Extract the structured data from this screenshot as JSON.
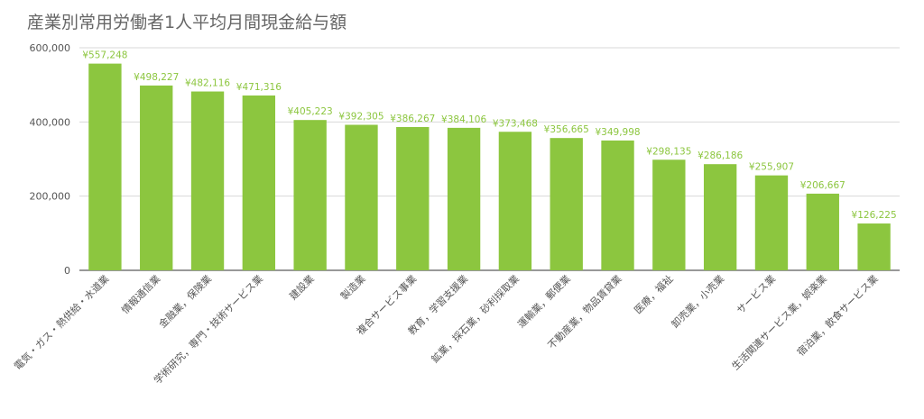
{
  "chart_data": {
    "type": "bar",
    "title": "産業別常用労働者1人平均月間現金給与額",
    "xlabel": "",
    "ylabel": "",
    "ylim": [
      0,
      600000
    ],
    "yticks": [
      "0",
      "200,000",
      "400,000",
      "600,000"
    ],
    "grid": true,
    "legend": "none",
    "bar_color": "#8cc63f",
    "label_color": "#8cc63f",
    "categories": [
      "電気・ガス・熱供給・水道業",
      "情報通信業",
      "金融業，保険業",
      "学術研究，専門・技術サービス業",
      "建設業",
      "製造業",
      "複合サービス事業",
      "教育，学習支援業",
      "鉱業，採石業，砂利採取業",
      "運輸業，郵便業",
      "不動産業，物品賃貸業",
      "医療，福祉",
      "卸売業，小売業",
      "サービス業",
      "生活関連サービス業，娯楽業",
      "宿泊業，飲食サービス業"
    ],
    "values": [
      557248,
      498227,
      482116,
      471316,
      405223,
      392305,
      386267,
      384106,
      373468,
      356665,
      349998,
      298135,
      286186,
      255907,
      206667,
      126225
    ],
    "data_labels": [
      "¥557,248",
      "¥498,227",
      "¥482,116",
      "¥471,316",
      "¥405,223",
      "¥392,305",
      "¥386,267",
      "¥384,106",
      "¥373,468",
      "¥356,665",
      "¥349,998",
      "¥298,135",
      "¥286,186",
      "¥255,907",
      "¥206,667",
      "¥126,225"
    ]
  }
}
